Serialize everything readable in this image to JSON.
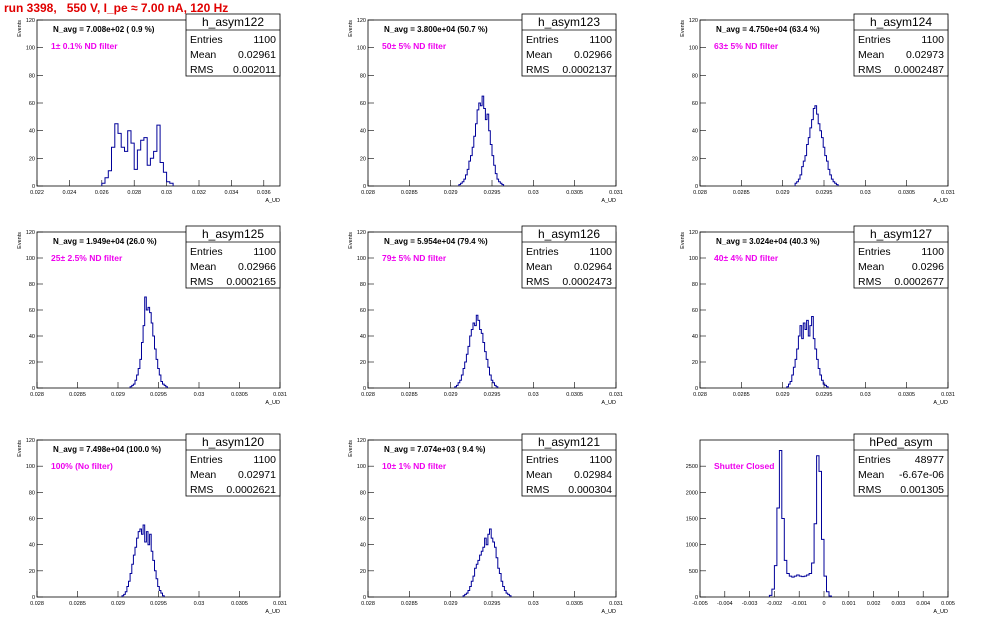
{
  "title": "run 3398,   550 V, I_pe ≈ 7.00 nA, 120 Hz",
  "colors": {
    "hist": "#000099",
    "note": "#ee00ee",
    "title": "#e00000",
    "axis": "#000000"
  },
  "chart_data": [
    {
      "type": "bar",
      "name": "h_asym122",
      "navg": "N_avg = 7.008e+02 ( 0.9 %)",
      "note": "1± 0.1% ND filter",
      "stats": [
        [
          "Entries",
          "1100"
        ],
        [
          "Mean",
          "0.02961"
        ],
        [
          "RMS",
          "0.002011"
        ]
      ],
      "xlabel": "A_UD",
      "ylabel": "Events",
      "xlim": [
        0.022,
        0.037
      ],
      "ylim": [
        0,
        120
      ],
      "xticks": [
        0.022,
        0.024,
        0.026,
        0.028,
        0.03,
        0.032,
        0.034,
        0.036
      ],
      "yticks": [
        0,
        20,
        40,
        60,
        80,
        100,
        120
      ],
      "tick_labels": [
        "0.022",
        "0.024",
        "0.026",
        "0.028",
        "0.03",
        "0.032",
        "0.034",
        "0.036"
      ],
      "x0": 0.026,
      "bin_width": 0.0002,
      "values": [
        2,
        6,
        11,
        28,
        45,
        38,
        28,
        25,
        40,
        31,
        12,
        26,
        33,
        35,
        15,
        20,
        25,
        44,
        17,
        10,
        3,
        2
      ]
    },
    {
      "type": "bar",
      "name": "h_asym123",
      "navg": "N_avg = 3.800e+04 (50.7 %)",
      "note": "50± 5% ND filter",
      "stats": [
        [
          "Entries",
          "1100"
        ],
        [
          "Mean",
          "0.02966"
        ],
        [
          "RMS",
          "0.0002137"
        ]
      ],
      "xlabel": "A_UD",
      "ylabel": "Events",
      "xlim": [
        0.028,
        0.031
      ],
      "ylim": [
        0,
        120
      ],
      "xticks": [
        0.028,
        0.0285,
        0.029,
        0.0295,
        0.03,
        0.0305,
        0.031
      ],
      "yticks": [
        0,
        20,
        40,
        60,
        80,
        100,
        120
      ],
      "tick_labels": [
        "0.028",
        "0.0285",
        "0.029",
        "0.0295",
        "0.03",
        "0.0305",
        "0.031"
      ],
      "x0": 0.0291,
      "bin_width": 2e-05,
      "values": [
        1,
        2,
        3,
        5,
        8,
        12,
        18,
        22,
        28,
        36,
        45,
        55,
        60,
        58,
        65,
        56,
        48,
        52,
        40,
        30,
        22,
        15,
        9,
        5,
        3,
        2,
        1
      ]
    },
    {
      "type": "bar",
      "name": "h_asym124",
      "navg": "N_avg = 4.750e+04 (63.4 %)",
      "note": "63± 5% ND filter",
      "stats": [
        [
          "Entries",
          "1100"
        ],
        [
          "Mean",
          "0.02973"
        ],
        [
          "RMS",
          "0.0002487"
        ]
      ],
      "xlabel": "A_UD",
      "ylabel": "Events",
      "xlim": [
        0.028,
        0.031
      ],
      "ylim": [
        0,
        120
      ],
      "xticks": [
        0.028,
        0.0285,
        0.029,
        0.0295,
        0.03,
        0.0305,
        0.031
      ],
      "yticks": [
        0,
        20,
        40,
        60,
        80,
        100,
        120
      ],
      "tick_labels": [
        "0.028",
        "0.0285",
        "0.029",
        "0.0295",
        "0.03",
        "0.0305",
        "0.031"
      ],
      "x0": 0.02915,
      "bin_width": 2e-05,
      "values": [
        2,
        3,
        5,
        8,
        14,
        18,
        22,
        30,
        35,
        42,
        48,
        56,
        58,
        52,
        45,
        40,
        35,
        28,
        22,
        18,
        12,
        8,
        5,
        3,
        2,
        1
      ]
    },
    {
      "type": "bar",
      "name": "h_asym125",
      "navg": "N_avg = 1.949e+04 (26.0 %)",
      "note": "25± 2.5% ND filter",
      "stats": [
        [
          "Entries",
          "1100"
        ],
        [
          "Mean",
          "0.02966"
        ],
        [
          "RMS",
          "0.0002165"
        ]
      ],
      "xlabel": "A_UD",
      "ylabel": "Events",
      "xlim": [
        0.028,
        0.031
      ],
      "ylim": [
        0,
        120
      ],
      "xticks": [
        0.028,
        0.0285,
        0.029,
        0.0295,
        0.03,
        0.0305,
        0.031
      ],
      "yticks": [
        0,
        20,
        40,
        60,
        80,
        100,
        120
      ],
      "tick_labels": [
        "0.028",
        "0.0285",
        "0.029",
        "0.0295",
        "0.03",
        "0.0305",
        "0.031"
      ],
      "x0": 0.02915,
      "bin_width": 2e-05,
      "values": [
        1,
        2,
        3,
        6,
        10,
        15,
        22,
        35,
        48,
        70,
        60,
        62,
        58,
        50,
        40,
        30,
        22,
        15,
        10,
        5,
        3,
        2,
        1
      ]
    },
    {
      "type": "bar",
      "name": "h_asym126",
      "navg": "N_avg = 5.954e+04 (79.4 %)",
      "note": "79± 5% ND filter",
      "stats": [
        [
          "Entries",
          "1100"
        ],
        [
          "Mean",
          "0.02964"
        ],
        [
          "RMS",
          "0.0002473"
        ]
      ],
      "xlabel": "A_UD",
      "ylabel": "Events",
      "xlim": [
        0.028,
        0.031
      ],
      "ylim": [
        0,
        120
      ],
      "xticks": [
        0.028,
        0.0285,
        0.029,
        0.0295,
        0.03,
        0.0305,
        0.031
      ],
      "yticks": [
        0,
        20,
        40,
        60,
        80,
        100,
        120
      ],
      "tick_labels": [
        "0.028",
        "0.0285",
        "0.029",
        "0.0295",
        "0.03",
        "0.0305",
        "0.031"
      ],
      "x0": 0.02905,
      "bin_width": 2e-05,
      "values": [
        1,
        2,
        4,
        6,
        10,
        15,
        20,
        26,
        32,
        40,
        45,
        50,
        48,
        56,
        52,
        45,
        42,
        35,
        28,
        22,
        16,
        10,
        6,
        4,
        2,
        1
      ]
    },
    {
      "type": "bar",
      "name": "h_asym127",
      "navg": "N_avg = 3.024e+04 (40.3 %)",
      "note": "40± 4% ND filter",
      "stats": [
        [
          "Entries",
          "1100"
        ],
        [
          "Mean",
          "0.0296"
        ],
        [
          "RMS",
          "0.0002677"
        ]
      ],
      "xlabel": "A_UD",
      "ylabel": "Events",
      "xlim": [
        0.028,
        0.031
      ],
      "ylim": [
        0,
        120
      ],
      "xticks": [
        0.028,
        0.0285,
        0.029,
        0.0295,
        0.03,
        0.0305,
        0.031
      ],
      "yticks": [
        0,
        20,
        40,
        60,
        80,
        100,
        120
      ],
      "tick_labels": [
        "0.028",
        "0.0285",
        "0.029",
        "0.0295",
        "0.03",
        "0.0305",
        "0.031"
      ],
      "x0": 0.02905,
      "bin_width": 2e-05,
      "values": [
        1,
        3,
        5,
        10,
        16,
        22,
        30,
        40,
        48,
        38,
        50,
        45,
        52,
        40,
        48,
        55,
        38,
        30,
        22,
        15,
        10,
        6,
        3,
        2,
        1
      ]
    },
    {
      "type": "bar",
      "name": "h_asym120",
      "navg": "N_avg = 7.498e+04 (100.0 %)",
      "note": "100% (No filter)",
      "stats": [
        [
          "Entries",
          "1100"
        ],
        [
          "Mean",
          "0.02971"
        ],
        [
          "RMS",
          "0.0002621"
        ]
      ],
      "xlabel": "A_UD",
      "ylabel": "Events",
      "xlim": [
        0.028,
        0.031
      ],
      "ylim": [
        0,
        120
      ],
      "xticks": [
        0.028,
        0.0285,
        0.029,
        0.0295,
        0.03,
        0.0305,
        0.031
      ],
      "yticks": [
        0,
        20,
        40,
        60,
        80,
        100,
        120
      ],
      "tick_labels": [
        "0.028",
        "0.0285",
        "0.029",
        "0.0295",
        "0.03",
        "0.0305",
        "0.031"
      ],
      "x0": 0.02905,
      "bin_width": 2e-05,
      "values": [
        1,
        2,
        4,
        8,
        12,
        18,
        25,
        32,
        38,
        45,
        50,
        52,
        48,
        55,
        42,
        50,
        40,
        48,
        35,
        28,
        20,
        14,
        8,
        5,
        3,
        1
      ]
    },
    {
      "type": "bar",
      "name": "h_asym121",
      "navg": "N_avg = 7.074e+03 ( 9.4 %)",
      "note": "10± 1% ND filter",
      "stats": [
        [
          "Entries",
          "1100"
        ],
        [
          "Mean",
          "0.02984"
        ],
        [
          "RMS",
          "0.000304"
        ]
      ],
      "xlabel": "A_UD",
      "ylabel": "Events",
      "xlim": [
        0.028,
        0.031
      ],
      "ylim": [
        0,
        120
      ],
      "xticks": [
        0.028,
        0.0285,
        0.029,
        0.0295,
        0.03,
        0.0305,
        0.031
      ],
      "yticks": [
        0,
        20,
        40,
        60,
        80,
        100,
        120
      ],
      "tick_labels": [
        "0.028",
        "0.0285",
        "0.029",
        "0.0295",
        "0.03",
        "0.0305",
        "0.031"
      ],
      "x0": 0.02915,
      "bin_width": 2e-05,
      "values": [
        1,
        2,
        3,
        5,
        8,
        12,
        16,
        22,
        25,
        28,
        32,
        35,
        38,
        45,
        40,
        48,
        52,
        45,
        42,
        38,
        30,
        22,
        18,
        12,
        8,
        5,
        3,
        2,
        1
      ]
    },
    {
      "type": "bar",
      "name": "hPed_asym",
      "navg": "",
      "note": "Shutter Closed",
      "stats": [
        [
          "Entries",
          "48977"
        ],
        [
          "Mean",
          "-6.67e-06"
        ],
        [
          "RMS",
          "0.001305"
        ]
      ],
      "xlabel": "A_UD",
      "ylabel": "",
      "xlim": [
        -0.005,
        0.005
      ],
      "ylim": [
        0,
        3000
      ],
      "xticks": [
        -0.005,
        -0.004,
        -0.003,
        -0.002,
        -0.001,
        0,
        0.001,
        0.002,
        0.003,
        0.004,
        0.005
      ],
      "yticks": [
        0,
        500,
        1000,
        1500,
        2000,
        2500
      ],
      "tick_labels": [
        "-0.005",
        "-0.004",
        "-0.003",
        "-0.002",
        "-0.001",
        "0",
        "0.001",
        "0.002",
        "0.003",
        "0.004",
        "0.005"
      ],
      "x0": -0.0022,
      "bin_width": 0.0001,
      "values": [
        30,
        150,
        600,
        1700,
        2800,
        1500,
        700,
        450,
        400,
        380,
        400,
        420,
        400,
        390,
        400,
        420,
        450,
        650,
        1400,
        2700,
        2400,
        1100,
        400,
        100,
        20
      ]
    }
  ]
}
